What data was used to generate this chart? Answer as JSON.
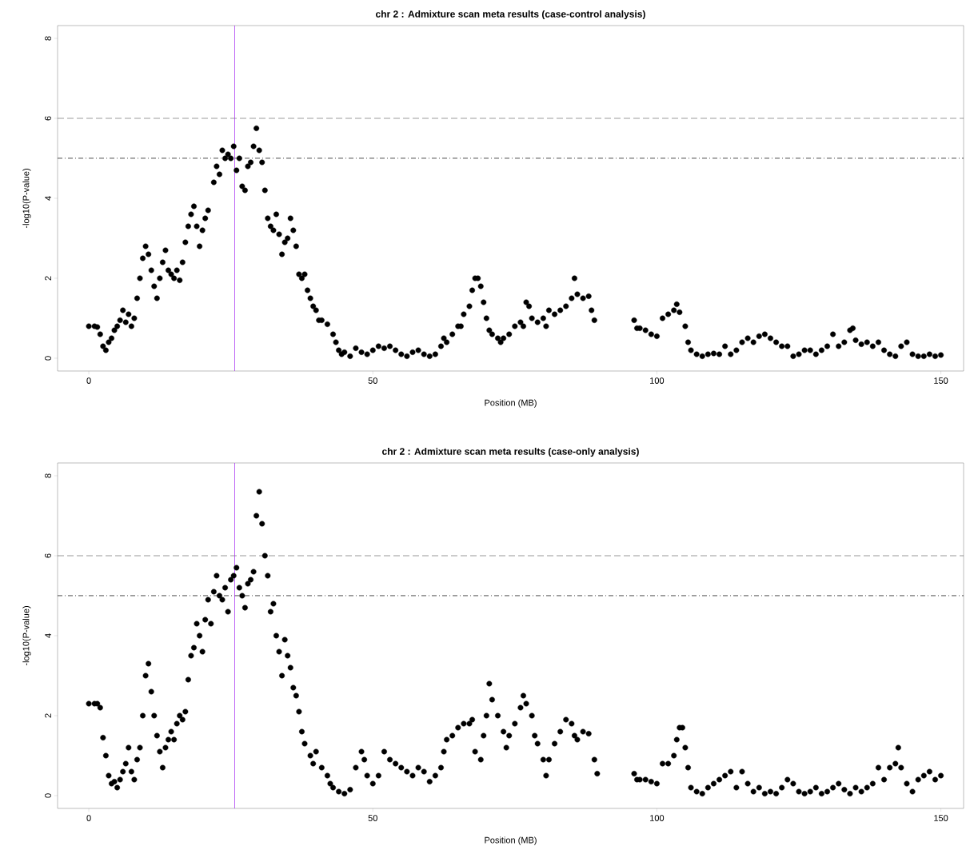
{
  "chart_data": [
    {
      "type": "scatter",
      "title": "chr 2 : Admixture scan meta results (case-control analysis)",
      "xlabel": "Position (MB)",
      "ylabel": "-log10(P-value)",
      "marker": "circle",
      "xlim": [
        -5.5,
        154
      ],
      "ylim": [
        -0.32,
        8.32
      ],
      "xticks": [
        0,
        50,
        100,
        150
      ],
      "yticks": [
        0,
        2,
        4,
        6,
        8
      ],
      "ref_lines": [
        {
          "axis": "y",
          "value": 6,
          "color": "#000000",
          "line_style": "dashed"
        },
        {
          "axis": "y",
          "value": 5,
          "color": "#000000",
          "line_style": "dashdot"
        },
        {
          "axis": "x",
          "value": 25.7,
          "color": "#a020f0",
          "line_style": "solid"
        }
      ],
      "x": [
        0,
        1,
        1.5,
        2,
        2.5,
        3,
        3.5,
        4,
        4.5,
        5,
        5.5,
        6,
        6.5,
        7,
        7.5,
        8,
        8.5,
        9,
        9.5,
        10,
        10.5,
        11,
        11.5,
        12,
        12.5,
        13,
        13.5,
        14,
        14.5,
        15,
        15.5,
        16,
        16.5,
        17,
        17.5,
        18,
        18.5,
        19,
        19.5,
        20,
        20.5,
        21,
        22,
        22.5,
        23,
        23.5,
        24,
        24.5,
        25,
        25.5,
        26,
        26.5,
        27,
        27.5,
        28,
        28.5,
        29,
        29.5,
        30,
        30.5,
        31,
        31.5,
        32,
        32.5,
        33,
        33.5,
        34,
        34.5,
        35,
        35.5,
        36,
        36.5,
        37,
        37.5,
        38,
        38.5,
        39,
        39.5,
        40,
        40.5,
        41,
        42,
        43,
        43.5,
        44,
        44.5,
        45,
        46,
        47,
        48,
        49,
        50,
        51,
        52,
        53,
        54,
        55,
        56,
        57,
        58,
        59,
        60,
        61,
        62,
        62.5,
        63,
        64,
        65,
        65.5,
        66,
        67,
        67.5,
        68,
        68.5,
        69,
        69.5,
        70,
        70.5,
        71,
        72,
        72.5,
        73,
        74,
        75,
        76,
        76.5,
        77,
        77.5,
        78,
        79,
        80,
        80.5,
        81,
        82,
        83,
        84,
        85,
        85.5,
        86,
        87,
        88,
        88.5,
        89,
        96,
        96.5,
        97,
        98,
        99,
        100,
        101,
        102,
        103,
        103.5,
        104,
        105,
        105.5,
        106,
        107,
        108,
        109,
        110,
        111,
        112,
        113,
        114,
        115,
        116,
        117,
        118,
        119,
        120,
        121,
        122,
        123,
        124,
        125,
        126,
        127,
        128,
        129,
        130,
        131,
        132,
        133,
        134,
        134.5,
        135,
        136,
        137,
        138,
        139,
        140,
        141,
        142,
        143,
        144,
        145,
        146,
        147,
        148,
        149,
        150
      ],
      "series": [
        {
          "color": "#000000",
          "values": [
            0.8,
            0.8,
            0.78,
            0.6,
            0.3,
            0.2,
            0.4,
            0.5,
            0.7,
            0.8,
            0.95,
            1.2,
            0.9,
            1.1,
            0.8,
            1.0,
            1.5,
            2.0,
            2.5,
            2.8,
            2.6,
            2.2,
            1.8,
            1.5,
            2.0,
            2.4,
            2.7,
            2.2,
            2.1,
            2.0,
            2.2,
            1.95,
            2.4,
            2.9,
            3.3,
            3.6,
            3.8,
            3.3,
            2.8,
            3.2,
            3.5,
            3.7,
            4.4,
            4.8,
            4.6,
            5.2,
            5.0,
            5.1,
            5.0,
            5.3,
            4.7,
            5.0,
            4.3,
            4.2,
            4.8,
            4.9,
            5.3,
            5.75,
            5.2,
            4.9,
            4.2,
            3.5,
            3.3,
            3.2,
            3.6,
            3.1,
            2.6,
            2.9,
            3.0,
            3.5,
            3.2,
            2.8,
            2.1,
            2.0,
            2.1,
            1.7,
            1.5,
            1.3,
            1.2,
            0.95,
            0.95,
            0.85,
            0.6,
            0.4,
            0.2,
            0.1,
            0.15,
            0.05,
            0.25,
            0.15,
            0.1,
            0.2,
            0.3,
            0.25,
            0.3,
            0.2,
            0.1,
            0.05,
            0.15,
            0.2,
            0.1,
            0.05,
            0.1,
            0.3,
            0.5,
            0.4,
            0.6,
            0.8,
            0.8,
            1.1,
            1.3,
            1.7,
            2.0,
            2.0,
            1.8,
            1.4,
            1.0,
            0.7,
            0.6,
            0.5,
            0.4,
            0.5,
            0.6,
            0.8,
            0.9,
            0.8,
            1.4,
            1.3,
            1.0,
            0.9,
            1.0,
            0.8,
            1.2,
            1.1,
            1.2,
            1.3,
            1.5,
            2.0,
            1.6,
            1.5,
            1.55,
            1.2,
            0.95,
            0.95,
            0.75,
            0.75,
            0.7,
            0.6,
            0.55,
            1.0,
            1.1,
            1.2,
            1.35,
            1.15,
            0.8,
            0.4,
            0.2,
            0.1,
            0.05,
            0.1,
            0.12,
            0.1,
            0.3,
            0.1,
            0.2,
            0.4,
            0.5,
            0.4,
            0.55,
            0.6,
            0.5,
            0.4,
            0.3,
            0.3,
            0.05,
            0.1,
            0.2,
            0.2,
            0.1,
            0.2,
            0.3,
            0.6,
            0.3,
            0.4,
            0.7,
            0.75,
            0.45,
            0.35,
            0.4,
            0.3,
            0.4,
            0.2,
            0.1,
            0.05,
            0.3,
            0.4,
            0.1,
            0.05,
            0.05,
            0.1,
            0.05,
            0.08
          ]
        }
      ]
    },
    {
      "type": "scatter",
      "title": "chr 2 : Admixture scan meta results (case-only analysis)",
      "xlabel": "Position (MB)",
      "ylabel": "-log10(P-value)",
      "marker": "circle",
      "xlim": [
        -5.5,
        154
      ],
      "ylim": [
        -0.32,
        8.32
      ],
      "xticks": [
        0,
        50,
        100,
        150
      ],
      "yticks": [
        0,
        2,
        4,
        6,
        8
      ],
      "ref_lines": [
        {
          "axis": "y",
          "value": 6,
          "color": "#000000",
          "line_style": "dashed"
        },
        {
          "axis": "y",
          "value": 5,
          "color": "#000000",
          "line_style": "dashdot"
        },
        {
          "axis": "x",
          "value": 25.7,
          "color": "#a020f0",
          "line_style": "solid"
        }
      ],
      "x": [
        0,
        1,
        1.5,
        2,
        2.5,
        3,
        3.5,
        4,
        4.5,
        5,
        5.5,
        6,
        6.5,
        7,
        7.5,
        8,
        8.5,
        9,
        9.5,
        10,
        10.5,
        11,
        11.5,
        12,
        12.5,
        13,
        13.5,
        14,
        14.5,
        15,
        15.5,
        16,
        16.5,
        17,
        17.5,
        18,
        18.5,
        19,
        19.5,
        20,
        20.5,
        21,
        21.5,
        22,
        22.5,
        23,
        23.5,
        24,
        24.5,
        25,
        25.5,
        26,
        26.5,
        27,
        27.5,
        28,
        28.5,
        29,
        29.5,
        30,
        30.5,
        31,
        31.5,
        32,
        32.5,
        33,
        33.5,
        34,
        34.5,
        35,
        35.5,
        36,
        36.5,
        37,
        37.5,
        38,
        39,
        39.5,
        40,
        41,
        42,
        42.5,
        43,
        44,
        45,
        46,
        47,
        48,
        48.5,
        49,
        50,
        51,
        52,
        53,
        54,
        55,
        56,
        57,
        58,
        59,
        60,
        61,
        62,
        62.5,
        63,
        64,
        65,
        66,
        67,
        67.5,
        68,
        69,
        69.5,
        70,
        70.5,
        71,
        72,
        73,
        73.5,
        74,
        75,
        76,
        76.5,
        77,
        78,
        78.5,
        79,
        80,
        80.5,
        81,
        82,
        83,
        84,
        85,
        85.5,
        86,
        87,
        88,
        89,
        89.5,
        96,
        96.5,
        97,
        98,
        99,
        100,
        101,
        102,
        103,
        103.5,
        104,
        104.5,
        105,
        105.5,
        106,
        107,
        108,
        109,
        110,
        111,
        112,
        113,
        114,
        115,
        116,
        117,
        118,
        119,
        120,
        121,
        122,
        123,
        124,
        125,
        126,
        127,
        128,
        129,
        130,
        131,
        132,
        133,
        134,
        135,
        136,
        137,
        138,
        139,
        140,
        141,
        142,
        142.5,
        143,
        144,
        145,
        146,
        147,
        148,
        149,
        150
      ],
      "series": [
        {
          "color": "#000000",
          "values": [
            2.3,
            2.3,
            2.3,
            2.2,
            1.45,
            1.0,
            0.5,
            0.3,
            0.35,
            0.2,
            0.4,
            0.6,
            0.8,
            1.2,
            0.6,
            0.4,
            0.9,
            1.2,
            2.0,
            3.0,
            3.3,
            2.6,
            2.0,
            1.5,
            1.1,
            0.7,
            1.2,
            1.4,
            1.6,
            1.4,
            1.8,
            2.0,
            1.9,
            2.1,
            2.9,
            3.5,
            3.7,
            4.3,
            4.0,
            3.6,
            4.4,
            4.9,
            4.3,
            5.1,
            5.5,
            5.0,
            4.9,
            5.2,
            4.6,
            5.4,
            5.5,
            5.7,
            5.2,
            5.0,
            4.7,
            5.3,
            5.4,
            5.6,
            7.0,
            7.6,
            6.8,
            6.0,
            5.5,
            4.6,
            4.8,
            4.0,
            3.6,
            3.0,
            3.9,
            3.5,
            3.2,
            2.7,
            2.5,
            2.1,
            1.6,
            1.3,
            1.0,
            0.8,
            1.1,
            0.7,
            0.5,
            0.3,
            0.2,
            0.1,
            0.05,
            0.15,
            0.7,
            1.1,
            0.9,
            0.5,
            0.3,
            0.5,
            1.1,
            0.9,
            0.8,
            0.7,
            0.6,
            0.5,
            0.7,
            0.6,
            0.35,
            0.5,
            0.7,
            1.1,
            1.4,
            1.5,
            1.7,
            1.8,
            1.8,
            1.9,
            1.1,
            0.9,
            1.5,
            2.0,
            2.8,
            2.4,
            2.0,
            1.6,
            1.2,
            1.5,
            1.8,
            2.2,
            2.5,
            2.3,
            2.0,
            1.5,
            1.3,
            0.9,
            0.5,
            0.9,
            1.3,
            1.6,
            1.9,
            1.8,
            1.5,
            1.4,
            1.6,
            1.55,
            0.9,
            0.55,
            0.55,
            0.4,
            0.4,
            0.4,
            0.35,
            0.3,
            0.8,
            0.8,
            1.0,
            1.4,
            1.7,
            1.7,
            1.2,
            0.7,
            0.2,
            0.1,
            0.05,
            0.2,
            0.3,
            0.4,
            0.5,
            0.6,
            0.2,
            0.6,
            0.3,
            0.1,
            0.2,
            0.05,
            0.1,
            0.05,
            0.2,
            0.4,
            0.3,
            0.1,
            0.05,
            0.1,
            0.2,
            0.05,
            0.1,
            0.2,
            0.3,
            0.15,
            0.05,
            0.2,
            0.1,
            0.2,
            0.3,
            0.7,
            0.4,
            0.7,
            0.8,
            1.2,
            0.7,
            0.3,
            0.1,
            0.4,
            0.5,
            0.6,
            0.4,
            0.5
          ]
        }
      ]
    }
  ]
}
